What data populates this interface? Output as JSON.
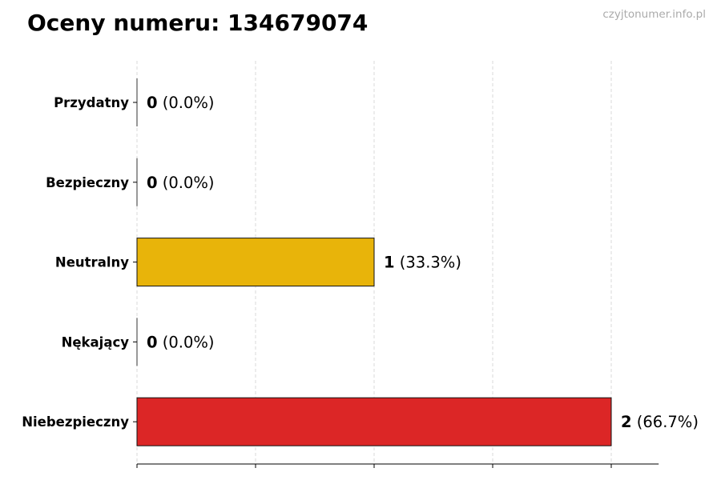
{
  "chart_data": {
    "type": "bar",
    "orientation": "horizontal",
    "title": "Oceny numeru: 134679074",
    "watermark": "czyjtonumer.info.pl",
    "categories": [
      "Przydatny",
      "Bezpieczny",
      "Neutralny",
      "Nękający",
      "Niebezpieczny"
    ],
    "values": [
      0,
      0,
      1,
      0,
      2
    ],
    "percent_labels": [
      "(0.0%)",
      "(0.0%)",
      "(33.3%)",
      "(0.0%)",
      "(66.7%)"
    ],
    "colors": [
      "#2e9e4f",
      "#3b82c4",
      "#e8b40a",
      "#f07d1a",
      "#dc2626"
    ],
    "xlim": [
      0,
      2.2
    ],
    "x_gridlines": [
      0,
      0.5,
      1,
      1.5,
      2
    ],
    "x_tick_labels_shown": false,
    "grid": "x-dashed",
    "xlabel": "",
    "ylabel": "",
    "legend": "none"
  }
}
